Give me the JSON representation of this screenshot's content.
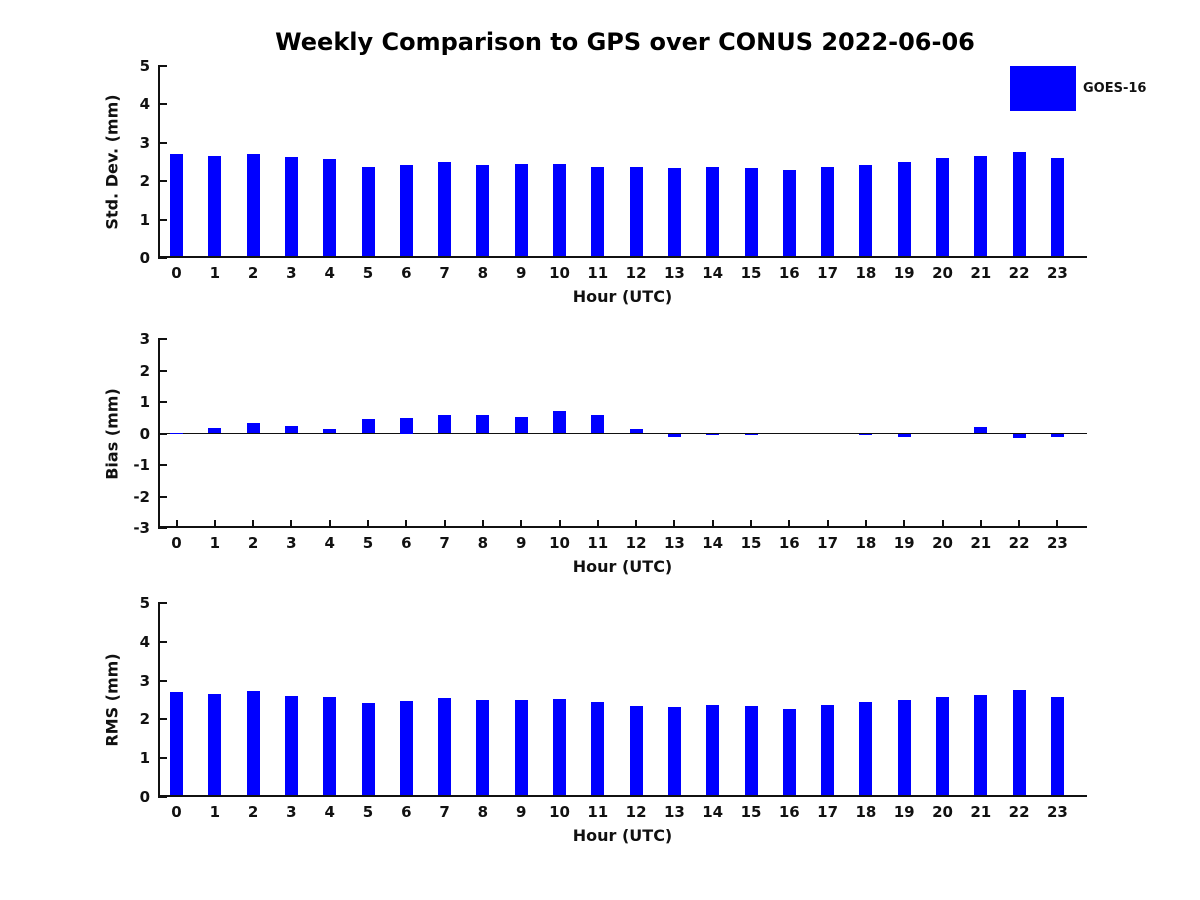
{
  "title": "Weekly Comparison to GPS over CONUS 2022-06-06",
  "legend": {
    "label": "GOES-16",
    "color": "#0000ff"
  },
  "chart_data": [
    {
      "type": "bar",
      "title": "",
      "ylabel": "Std. Dev. (mm)",
      "xlabel": "Hour (UTC)",
      "ylim": [
        0,
        5
      ],
      "yticks": [
        0,
        1,
        2,
        3,
        4,
        5
      ],
      "legend_entry": "GOES-16",
      "bar_color": "#0000ff",
      "grid": false,
      "categories": [
        "0",
        "1",
        "2",
        "3",
        "4",
        "5",
        "6",
        "7",
        "8",
        "9",
        "10",
        "11",
        "12",
        "13",
        "14",
        "15",
        "16",
        "17",
        "18",
        "19",
        "20",
        "21",
        "22",
        "23"
      ],
      "values": [
        2.7,
        2.65,
        2.7,
        2.62,
        2.57,
        2.38,
        2.43,
        2.49,
        2.41,
        2.46,
        2.44,
        2.38,
        2.36,
        2.34,
        2.37,
        2.34,
        2.28,
        2.37,
        2.42,
        2.49,
        2.6,
        2.66,
        2.77,
        2.61
      ]
    },
    {
      "type": "bar",
      "title": "",
      "ylabel": "Bias (mm)",
      "xlabel": "Hour (UTC)",
      "ylim": [
        -3,
        3
      ],
      "yticks": [
        3,
        2,
        1,
        0,
        -1,
        -2,
        -3
      ],
      "zero_line": true,
      "legend_entry": "GOES-16",
      "bar_color": "#0000ff",
      "grid": false,
      "categories": [
        "0",
        "1",
        "2",
        "3",
        "4",
        "5",
        "6",
        "7",
        "8",
        "9",
        "10",
        "11",
        "12",
        "13",
        "14",
        "15",
        "16",
        "17",
        "18",
        "19",
        "20",
        "21",
        "22",
        "23"
      ],
      "values": [
        0.02,
        0.19,
        0.33,
        0.23,
        0.14,
        0.45,
        0.5,
        0.58,
        0.6,
        0.53,
        0.71,
        0.58,
        0.15,
        -0.12,
        -0.06,
        -0.03,
        0.0,
        0.0,
        -0.06,
        -0.11,
        0.0,
        0.21,
        -0.14,
        -0.11
      ]
    },
    {
      "type": "bar",
      "title": "",
      "ylabel": "RMS (mm)",
      "xlabel": "Hour (UTC)",
      "ylim": [
        0,
        5
      ],
      "yticks": [
        0,
        1,
        2,
        3,
        4,
        5
      ],
      "legend_entry": "GOES-16",
      "bar_color": "#0000ff",
      "grid": false,
      "categories": [
        "0",
        "1",
        "2",
        "3",
        "4",
        "5",
        "6",
        "7",
        "8",
        "9",
        "10",
        "11",
        "12",
        "13",
        "14",
        "15",
        "16",
        "17",
        "18",
        "19",
        "20",
        "21",
        "22",
        "23"
      ],
      "values": [
        2.7,
        2.65,
        2.72,
        2.6,
        2.57,
        2.42,
        2.47,
        2.54,
        2.49,
        2.5,
        2.52,
        2.45,
        2.35,
        2.33,
        2.38,
        2.35,
        2.28,
        2.37,
        2.44,
        2.49,
        2.59,
        2.64,
        2.76,
        2.59
      ]
    }
  ]
}
